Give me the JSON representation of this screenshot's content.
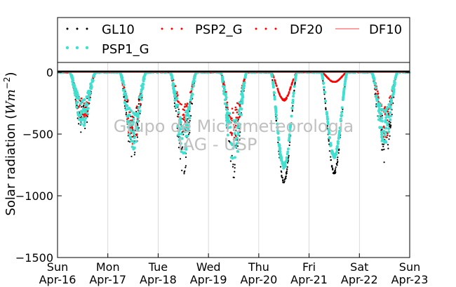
{
  "chart_data": {
    "type": "scatter",
    "ylabel": "Solar radiation (W m^-2)",
    "ylabel_prefix": "Solar radiation (",
    "ylabel_unit_w": "W",
    "ylabel_unit_m": "m",
    "ylabel_unit_exp": "−2",
    "ylabel_suffix": ")",
    "ylim": [
      -1500,
      80
    ],
    "yticks": [
      0,
      -500,
      -1000,
      -1500
    ],
    "ytick_labels": [
      "0",
      "−500",
      "−1000",
      "−1500"
    ],
    "xlim": [
      0,
      7
    ],
    "xticks": [
      0,
      1,
      2,
      3,
      4,
      5,
      6,
      7
    ],
    "xtick_labels": [
      [
        "Sun",
        "Apr-16"
      ],
      [
        "Mon",
        "Apr-17"
      ],
      [
        "Tue",
        "Apr-18"
      ],
      [
        "Wed",
        "Apr-19"
      ],
      [
        "Thu",
        "Apr-20"
      ],
      [
        "Fri",
        "Apr-21"
      ],
      [
        "Sat",
        "Apr-22"
      ],
      [
        "Sun",
        "Apr-23"
      ]
    ],
    "grid": "vertical",
    "legend_position": "top",
    "watermark": [
      "Grupo de Micrometeorologia",
      "IAG - USP"
    ],
    "series": [
      {
        "name": "GL10",
        "color": "#000000",
        "style": "dots",
        "daily_min": [
          -510,
          -720,
          -830,
          -870,
          -905,
          -830,
          -730
        ]
      },
      {
        "name": "PSP2_G",
        "color": "#ff0000",
        "style": "dots",
        "daily_min": [
          -440,
          -620,
          -540,
          -600,
          -230,
          -80,
          -560
        ]
      },
      {
        "name": "DF20",
        "color": "#ff0000",
        "style": "dots",
        "daily_min": [
          -420,
          -600,
          -520,
          -580,
          -230,
          -80,
          -540
        ]
      },
      {
        "name": "DF10",
        "color": "#ff6666",
        "style": "line",
        "daily_min": [
          -400,
          -580,
          -500,
          -560,
          -230,
          -80,
          -520
        ]
      },
      {
        "name": "PSP1_G",
        "color": "#40e0d0",
        "style": "dots",
        "daily_min": [
          -450,
          -640,
          -690,
          -780,
          -780,
          -700,
          -600
        ]
      }
    ]
  }
}
